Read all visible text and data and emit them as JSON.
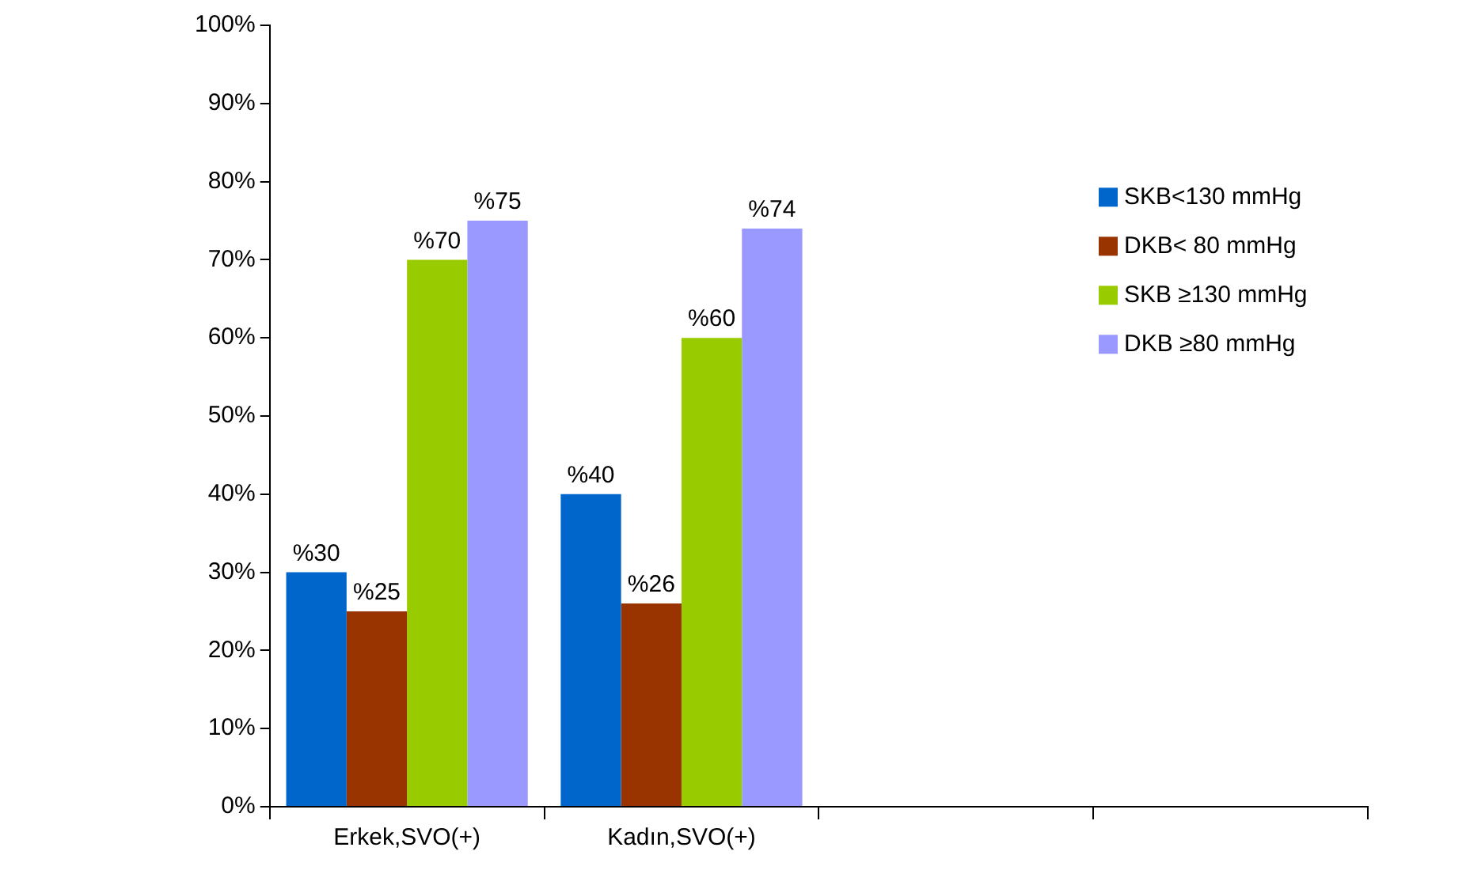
{
  "chart_data": {
    "type": "bar",
    "categories": [
      "Erkek,SVO(+)",
      "Kadın,SVO(+)",
      null,
      null
    ],
    "series": [
      {
        "name": "SKB<130 mmHg",
        "color": "#0066cc",
        "values": [
          30,
          40,
          null,
          null
        ],
        "value_labels": [
          "%30",
          "%40",
          null,
          null
        ]
      },
      {
        "name": "DKB< 80 mmHg",
        "color": "#993300",
        "values": [
          25,
          26,
          null,
          null
        ],
        "value_labels": [
          "%25",
          "%26",
          null,
          null
        ]
      },
      {
        "name": "SKB ≥130 mmHg",
        "color": "#99cc00",
        "values": [
          70,
          60,
          null,
          null
        ],
        "value_labels": [
          "%70",
          "%60",
          null,
          null
        ]
      },
      {
        "name": "DKB ≥80 mmHg",
        "color": "#9999ff",
        "values": [
          75,
          74,
          null,
          null
        ],
        "value_labels": [
          "%75",
          "%74",
          null,
          null
        ]
      }
    ],
    "ylim": [
      0,
      100
    ],
    "yticks": [
      {
        "value": 0,
        "label": "0%"
      },
      {
        "value": 10,
        "label": "10%"
      },
      {
        "value": 20,
        "label": "20%"
      },
      {
        "value": 30,
        "label": "30%"
      },
      {
        "value": 40,
        "label": "40%"
      },
      {
        "value": 50,
        "label": "50%"
      },
      {
        "value": 60,
        "label": "60%"
      },
      {
        "value": 70,
        "label": "70%"
      },
      {
        "value": 80,
        "label": "80%"
      },
      {
        "value": 90,
        "label": "90%"
      },
      {
        "value": 100,
        "label": "100%"
      }
    ],
    "grid": false,
    "legend": "right"
  }
}
